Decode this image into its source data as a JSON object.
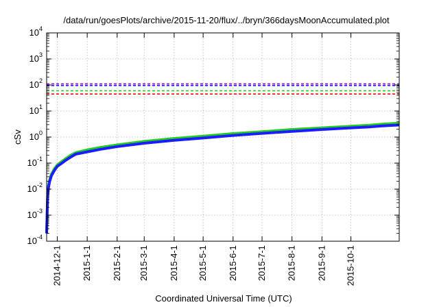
{
  "chart_data": {
    "type": "line",
    "title": "/data/run/goesPlots/archive/2015-11-20/flux/../bryn/366daysMoonAccumulated.plot",
    "xlabel": "Coordinated Universal Time (UTC)",
    "ylabel": "cSv",
    "yscale": "log",
    "ylim": [
      0.0001,
      10000
    ],
    "xlim": [
      "2014-11-20",
      "2015-11-20"
    ],
    "grid": true,
    "y_ticks": [
      {
        "value": 0.0001,
        "base": "10",
        "exp": "-4"
      },
      {
        "value": 0.001,
        "base": "10",
        "exp": "-3"
      },
      {
        "value": 0.01,
        "base": "10",
        "exp": "-2"
      },
      {
        "value": 0.1,
        "base": "10",
        "exp": "-1"
      },
      {
        "value": 1,
        "base": "10",
        "exp": "0"
      },
      {
        "value": 10,
        "base": "10",
        "exp": "1"
      },
      {
        "value": 100,
        "base": "10",
        "exp": "2"
      },
      {
        "value": 1000,
        "base": "10",
        "exp": "3"
      },
      {
        "value": 10000,
        "base": "10",
        "exp": "4"
      }
    ],
    "x_ticks": [
      "2014-12-1",
      "2015-1-1",
      "2015-2-1",
      "2015-3-1",
      "2015-4-1",
      "2015-5-1",
      "2015-6-1",
      "2015-7-1",
      "2015-8-1",
      "2015-9-1",
      "2015-10-1"
    ],
    "reference_lines": [
      {
        "value": 110,
        "color": "#9400d3"
      },
      {
        "value": 95,
        "color": "#1c1cff"
      },
      {
        "value": 60,
        "color": "#22cc22"
      },
      {
        "value": 45,
        "color": "#ff0000"
      }
    ],
    "series": [
      {
        "color": "#22cc22",
        "points": [
          [
            "2014-11-20",
            0.0002
          ],
          [
            "2014-11-21",
            0.006
          ],
          [
            "2014-11-22",
            0.014
          ],
          [
            "2014-11-23",
            0.022
          ],
          [
            "2014-11-25",
            0.038
          ],
          [
            "2014-11-28",
            0.06
          ],
          [
            "2014-12-1",
            0.085
          ],
          [
            "2014-12-5",
            0.11
          ],
          [
            "2014-12-10",
            0.15
          ],
          [
            "2014-12-15",
            0.2
          ],
          [
            "2014-12-20",
            0.25
          ],
          [
            "2015-1-1",
            0.32
          ],
          [
            "2015-1-15",
            0.4
          ],
          [
            "2015-2-1",
            0.5
          ],
          [
            "2015-3-1",
            0.68
          ],
          [
            "2015-4-1",
            0.88
          ],
          [
            "2015-5-1",
            1.08
          ],
          [
            "2015-6-1",
            1.35
          ],
          [
            "2015-7-1",
            1.6
          ],
          [
            "2015-8-1",
            1.95
          ],
          [
            "2015-9-1",
            2.25
          ],
          [
            "2015-10-1",
            2.6
          ],
          [
            "2015-10-20",
            2.85
          ],
          [
            "2015-11-1",
            3.1
          ],
          [
            "2015-11-20",
            3.4
          ]
        ]
      },
      {
        "color": "#1c1cff",
        "points": [
          [
            "2014-11-20",
            0.0002
          ],
          [
            "2014-11-21",
            0.005
          ],
          [
            "2014-11-22",
            0.012
          ],
          [
            "2014-11-23",
            0.019
          ],
          [
            "2014-11-25",
            0.033
          ],
          [
            "2014-11-28",
            0.052
          ],
          [
            "2014-12-1",
            0.075
          ],
          [
            "2014-12-5",
            0.095
          ],
          [
            "2014-12-10",
            0.13
          ],
          [
            "2014-12-15",
            0.17
          ],
          [
            "2014-12-20",
            0.22
          ],
          [
            "2015-1-1",
            0.27
          ],
          [
            "2015-1-15",
            0.34
          ],
          [
            "2015-2-1",
            0.43
          ],
          [
            "2015-3-1",
            0.58
          ],
          [
            "2015-4-1",
            0.75
          ],
          [
            "2015-5-1",
            0.92
          ],
          [
            "2015-6-1",
            1.15
          ],
          [
            "2015-7-1",
            1.38
          ],
          [
            "2015-8-1",
            1.65
          ],
          [
            "2015-9-1",
            1.95
          ],
          [
            "2015-10-1",
            2.25
          ],
          [
            "2015-10-20",
            2.45
          ],
          [
            "2015-11-1",
            2.65
          ],
          [
            "2015-11-20",
            2.9
          ]
        ]
      }
    ]
  }
}
